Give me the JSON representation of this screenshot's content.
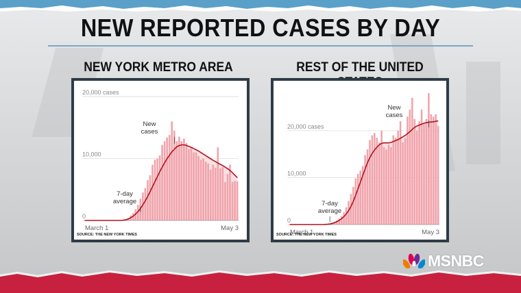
{
  "title": "NEW REPORTED CASES BY DAY",
  "network_logo": "MSNBC",
  "colors": {
    "bar": "#f0a4ab",
    "bar_light": "#f6c9cd",
    "line": "#b3121c",
    "band": "#c8213f",
    "frame": "#2f3c47"
  },
  "chart_data": [
    {
      "type": "bar",
      "panel_title": "NEW YORK METRO AREA",
      "ylim": [
        0,
        21000
      ],
      "yticks": [
        {
          "value": 0,
          "label": "0"
        },
        {
          "value": 10000,
          "label": "10,000"
        },
        {
          "value": 20000,
          "label": "20,000 cases"
        }
      ],
      "x_start_label": "March 1",
      "x_end_label": "May 3",
      "values": [
        0,
        0,
        0,
        0,
        0,
        0,
        0,
        0,
        0,
        0,
        0,
        0,
        0,
        0,
        0,
        0,
        100,
        200,
        400,
        800,
        1200,
        1800,
        2500,
        3500,
        4500,
        5200,
        6500,
        7300,
        9000,
        9800,
        10000,
        10500,
        12200,
        12800,
        13400,
        13800,
        16000,
        14500,
        12800,
        13500,
        12800,
        13200,
        12500,
        11500,
        11800,
        11000,
        11000,
        10400,
        9800,
        10000,
        9500,
        9200,
        8200,
        9000,
        8500,
        11800,
        8400,
        8600,
        6200,
        7500,
        9000,
        6200,
        6400,
        6300
      ],
      "seven_day_avg": [
        0,
        0,
        0,
        0,
        0,
        0,
        0,
        0,
        0,
        0,
        0,
        0,
        0,
        0,
        0,
        0,
        50,
        120,
        250,
        450,
        700,
        1050,
        1450,
        1950,
        2550,
        3200,
        3900,
        4700,
        5500,
        6300,
        7100,
        7900,
        8650,
        9350,
        10000,
        10550,
        11100,
        11500,
        11900,
        12100,
        12200,
        12200,
        12100,
        11950,
        11800,
        11600,
        11400,
        11200,
        10950,
        10700,
        10450,
        10200,
        9950,
        9700,
        9500,
        9250,
        9050,
        8850,
        8600,
        8350,
        8050,
        7700,
        7300,
        6900
      ],
      "annotations": [
        {
          "lines": [
            "New",
            "cases"
          ]
        },
        {
          "lines": [
            "7-day",
            "average"
          ]
        }
      ],
      "source": "SOURCE: THE NEW YORK TIMES"
    },
    {
      "type": "bar",
      "panel_title": "REST OF THE UNITED STATES",
      "ylim": [
        0,
        28000
      ],
      "yticks": [
        {
          "value": 0,
          "label": "0"
        },
        {
          "value": 10000,
          "label": "10,000"
        },
        {
          "value": 20000,
          "label": "20,000 cases"
        }
      ],
      "x_start_label": "March 1",
      "x_end_label": "May 3",
      "values": [
        0,
        0,
        0,
        0,
        0,
        0,
        0,
        0,
        0,
        0,
        0,
        0,
        0,
        0,
        0,
        50,
        100,
        200,
        400,
        600,
        900,
        1300,
        1800,
        2600,
        3700,
        5000,
        6500,
        8000,
        9800,
        10800,
        11500,
        12500,
        14800,
        16000,
        18000,
        19000,
        19500,
        18500,
        17500,
        20000,
        16500,
        16000,
        17000,
        16500,
        19000,
        18500,
        20000,
        22000,
        17500,
        18500,
        23000,
        24500,
        27000,
        22500,
        20000,
        22000,
        24500,
        21500,
        22500,
        28000,
        23500,
        23000,
        23500,
        21000
      ],
      "seven_day_avg": [
        0,
        0,
        0,
        0,
        0,
        0,
        0,
        0,
        0,
        0,
        0,
        0,
        0,
        0,
        0,
        25,
        60,
        120,
        230,
        400,
        620,
        900,
        1250,
        1700,
        2300,
        3000,
        3900,
        5000,
        6300,
        7700,
        9100,
        10500,
        11900,
        13200,
        14300,
        15200,
        15900,
        16500,
        17000,
        17300,
        17400,
        17400,
        17400,
        17500,
        17700,
        17900,
        18100,
        18400,
        18700,
        19000,
        19400,
        19800,
        20300,
        20700,
        21000,
        21200,
        21400,
        21600,
        21700,
        21800,
        21850,
        21900,
        22000,
        22100
      ],
      "annotations": [
        {
          "lines": [
            "New",
            "cases"
          ]
        },
        {
          "lines": [
            "7-day",
            "average"
          ]
        }
      ],
      "source": "SOURCE: THE NEW YORK TIMES"
    }
  ]
}
